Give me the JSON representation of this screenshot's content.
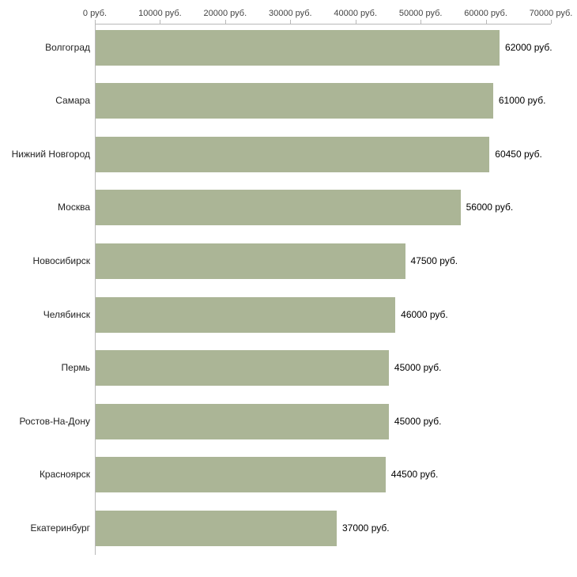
{
  "chart_data": {
    "type": "bar",
    "orientation": "horizontal",
    "title": "",
    "xlabel": "",
    "ylabel": "",
    "categories": [
      "Волгоград",
      "Самара",
      "Нижний Новгород",
      "Москва",
      "Новосибирск",
      "Челябинск",
      "Пермь",
      "Ростов-На-Дону",
      "Красноярск",
      "Екатеринбург"
    ],
    "values": [
      62000,
      61000,
      60450,
      56000,
      47500,
      46000,
      45000,
      45000,
      44500,
      37000
    ],
    "value_labels": [
      "62000 руб.",
      "61000 руб.",
      "60450 руб.",
      "56000 руб.",
      "47500 руб.",
      "46000 руб.",
      "45000 руб.",
      "45000 руб.",
      "44500 руб.",
      "37000 руб."
    ],
    "x_ticks": [
      0,
      10000,
      20000,
      30000,
      40000,
      50000,
      60000,
      70000
    ],
    "x_tick_labels": [
      "0 руб.",
      "10000 руб.",
      "20000 руб.",
      "30000 руб.",
      "40000 руб.",
      "50000 руб.",
      "60000 руб.",
      "70000 руб."
    ],
    "xlim": [
      0,
      70000
    ],
    "grid": false,
    "legend_position": "none",
    "bar_color": "#abb596",
    "axis_color": "#b8b8b8",
    "tick_label_color": "#444444",
    "category_label_color": "#222222",
    "value_label_color": "#000000"
  }
}
